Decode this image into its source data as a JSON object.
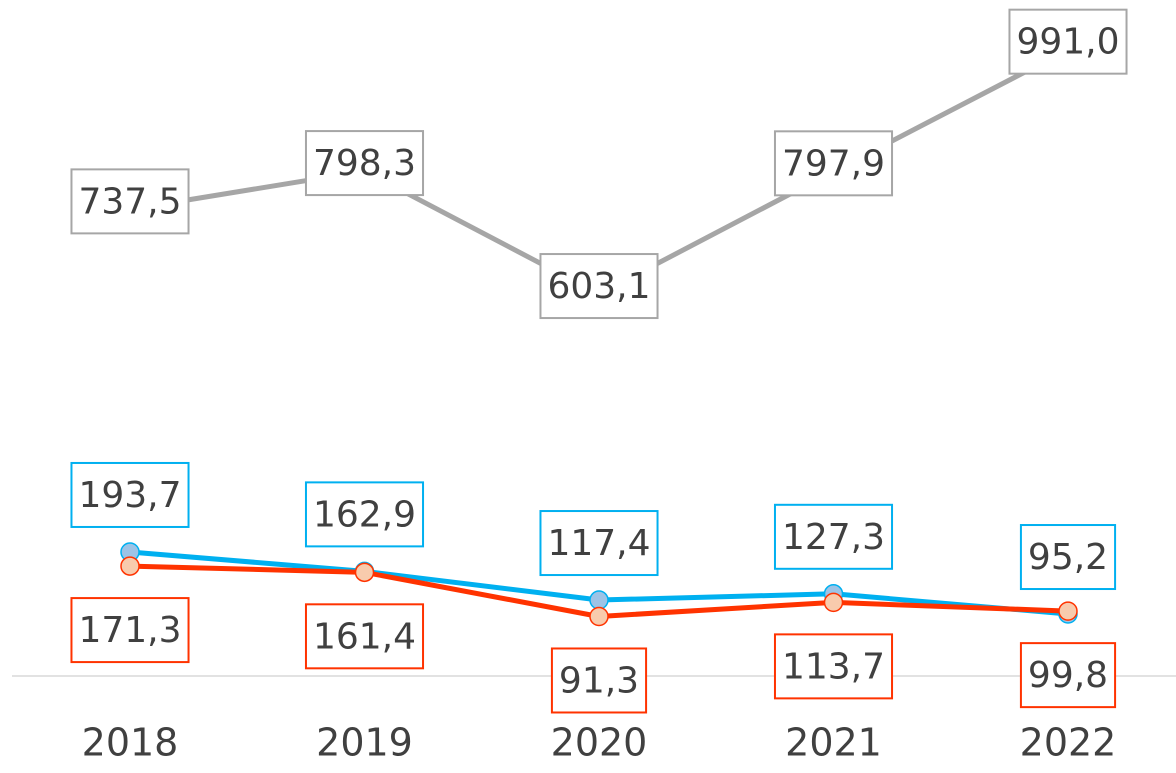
{
  "chart_data": {
    "type": "line",
    "categories": [
      "2018",
      "2019",
      "2020",
      "2021",
      "2022"
    ],
    "ylim": [
      0,
      1000
    ],
    "series": [
      {
        "color": "#a6a6a6",
        "markers": false,
        "label_position": "center",
        "values": [
          737.5,
          798.3,
          603.1,
          797.9,
          991.0
        ],
        "value_labels": [
          "737,5",
          "798,3",
          "603,1",
          "797,9",
          "991,0"
        ]
      },
      {
        "color": "#00b0f0",
        "marker_fill": "#9dc3e6",
        "markers": true,
        "label_position": "above",
        "values": [
          193.7,
          162.9,
          117.4,
          127.3,
          95.2
        ],
        "value_labels": [
          "193,7",
          "162,9",
          "117,4",
          "127,3",
          "95,2"
        ]
      },
      {
        "color": "#ff3300",
        "marker_fill": "#f8cbad",
        "markers": true,
        "label_position": "below",
        "values": [
          171.3,
          161.4,
          91.3,
          113.7,
          99.8
        ],
        "value_labels": [
          "171,3",
          "161,4",
          "91,3",
          "113,7",
          "99,8"
        ]
      }
    ]
  }
}
